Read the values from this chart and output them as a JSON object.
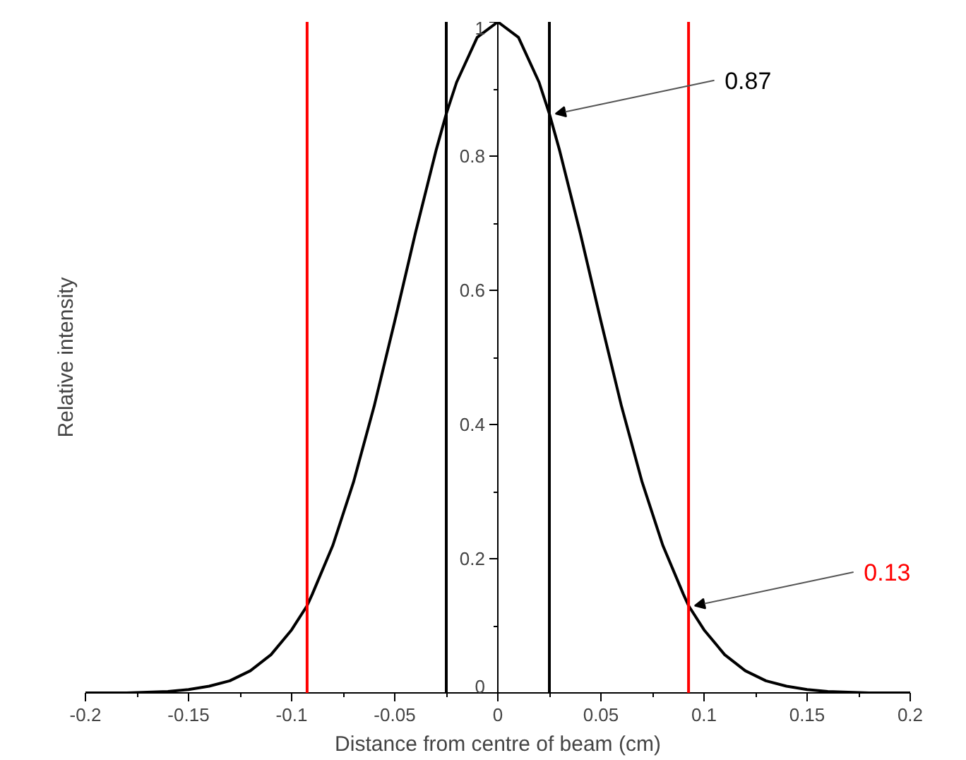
{
  "chart_data": {
    "type": "line",
    "xlabel": "Distance from centre of beam (cm)",
    "ylabel": "Relative intensity",
    "x": [
      -0.2,
      -0.19,
      -0.18,
      -0.17,
      -0.16,
      -0.15,
      -0.14,
      -0.13,
      -0.12,
      -0.11,
      -0.1,
      -0.0925,
      -0.09,
      -0.08,
      -0.07,
      -0.06,
      -0.05,
      -0.04,
      -0.03,
      -0.025,
      -0.02,
      -0.01,
      0,
      0.01,
      0.02,
      0.025,
      0.03,
      0.04,
      0.05,
      0.06,
      0.07,
      0.08,
      0.09,
      0.0925,
      0.1,
      0.11,
      0.12,
      0.13,
      0.14,
      0.15,
      0.16,
      0.17,
      0.18,
      0.19,
      0.2
    ],
    "series": [
      {
        "color": "#000000",
        "values": [
          0,
          0,
          0,
          0.001,
          0.002,
          0.005,
          0.01,
          0.018,
          0.033,
          0.057,
          0.094,
          0.13,
          0.147,
          0.22,
          0.314,
          0.427,
          0.554,
          0.685,
          0.808,
          0.863,
          0.91,
          0.977,
          1,
          0.977,
          0.91,
          0.863,
          0.808,
          0.685,
          0.554,
          0.427,
          0.314,
          0.22,
          0.147,
          0.13,
          0.094,
          0.057,
          0.033,
          0.018,
          0.01,
          0.005,
          0.002,
          0.001,
          0,
          0,
          0
        ]
      }
    ],
    "xlim": [
      -0.2,
      0.2
    ],
    "ylim": [
      0,
      1
    ],
    "xticks": [
      -0.2,
      -0.15,
      -0.1,
      -0.05,
      0,
      0.05,
      0.1,
      0.15,
      0.2
    ],
    "yticks": [
      0,
      0.2,
      0.4,
      0.6,
      0.8,
      1
    ],
    "ref_lines": [
      {
        "axis": "x",
        "value": -0.0925,
        "color": "#ff0000"
      },
      {
        "axis": "x",
        "value": 0.0925,
        "color": "#ff0000"
      },
      {
        "axis": "x",
        "value": -0.025,
        "color": "#000000"
      },
      {
        "axis": "x",
        "value": 0.025,
        "color": "#000000"
      }
    ],
    "annotations": [
      {
        "text": "0.87",
        "x": 0.025,
        "y": 0.863
      },
      {
        "text": "0.13",
        "x": 0.0925,
        "y": 0.13
      }
    ],
    "grid": false,
    "marker": "none",
    "line_style": "solid"
  }
}
